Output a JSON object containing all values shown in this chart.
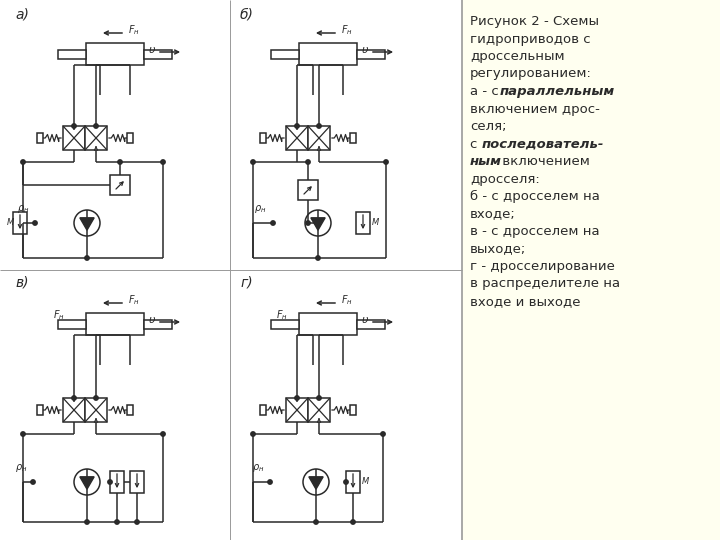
{
  "bg_left": "#ffffff",
  "bg_right": "#fffff0",
  "lc": "#2a2a2a",
  "label_a": "a)",
  "label_b": "б)",
  "label_v": "в)",
  "label_g": "г)",
  "text_lines": [
    [
      "Рисунок 2 - Схемы",
      false
    ],
    [
      "гидроприводов с",
      false
    ],
    [
      "дроссельным",
      false
    ],
    [
      "регулированием:",
      false
    ],
    [
      "a - с ",
      false,
      "параллельным",
      true,
      " включением дрос-",
      false
    ],
    [
      "селя;",
      false
    ],
    [
      "с ",
      false,
      "последователь-",
      true
    ],
    [
      "ным",
      true,
      " включением",
      false
    ],
    [
      "дросселя:",
      false
    ],
    [
      "б - с дросселем на",
      false
    ],
    [
      "входе;",
      false
    ],
    [
      "в - с дросселем на",
      false
    ],
    [
      "выходе;",
      false
    ],
    [
      "г - дросселирование",
      false
    ],
    [
      "в распределителе на",
      false
    ],
    [
      "входе и выходе",
      false
    ]
  ]
}
